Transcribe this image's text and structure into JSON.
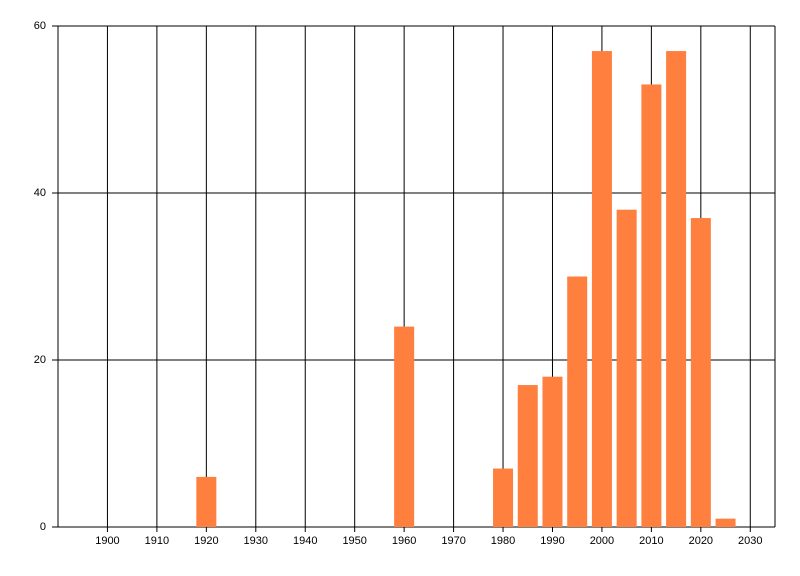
{
  "chart_data": {
    "type": "bar",
    "x": [
      1920,
      1960,
      1980,
      1985,
      1990,
      1995,
      2000,
      2005,
      2010,
      2015,
      2020,
      2025
    ],
    "values": [
      6,
      24,
      7,
      17,
      18,
      30,
      57,
      38,
      53,
      57,
      37,
      1
    ],
    "color": "#ff7f3f",
    "xlim": [
      1890,
      2035
    ],
    "xticks": [
      1900,
      1910,
      1920,
      1930,
      1940,
      1950,
      1960,
      1970,
      1980,
      1990,
      2000,
      2010,
      2020,
      2030
    ],
    "ylim": [
      0,
      60
    ],
    "yticks": [
      0,
      20,
      40,
      60
    ],
    "grid": true
  }
}
